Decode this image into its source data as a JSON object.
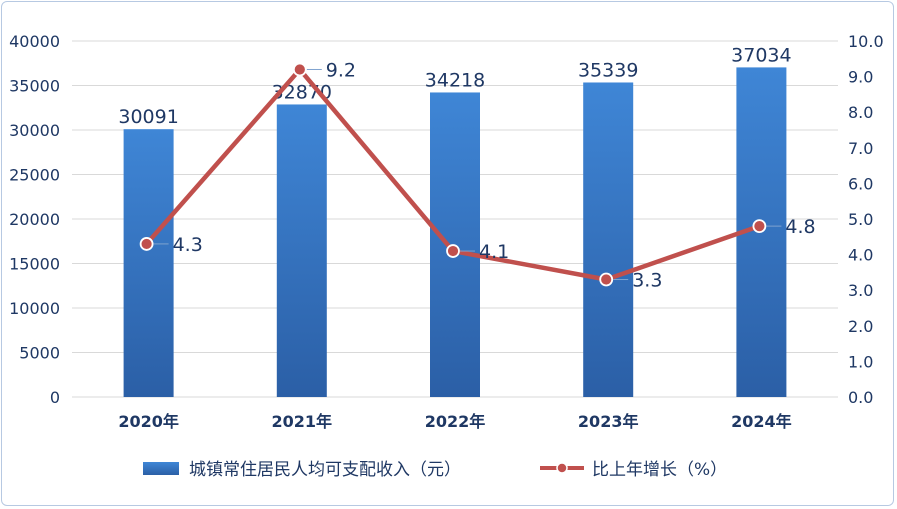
{
  "chart_data": {
    "type": "bar",
    "categories": [
      "2020年",
      "2021年",
      "2022年",
      "2023年",
      "2024年"
    ],
    "series": [
      {
        "name": "城镇常住居民人均可支配收入（元）",
        "type": "bar",
        "axis": "left",
        "values": [
          30091,
          32870,
          34218,
          35339,
          37034
        ],
        "color": "#3a78c3"
      },
      {
        "name": "比上年增长（%）",
        "type": "line",
        "axis": "right",
        "values": [
          4.3,
          9.2,
          4.1,
          3.3,
          4.8
        ],
        "color": "#c0504d"
      }
    ],
    "left_axis": {
      "min": 0,
      "max": 40000,
      "step": 5000,
      "ticks": [
        "0",
        "5000",
        "10000",
        "15000",
        "20000",
        "25000",
        "30000",
        "35000",
        "40000"
      ]
    },
    "right_axis": {
      "min": 0,
      "max": 10,
      "step": 1,
      "ticks": [
        "0.0",
        "1.0",
        "2.0",
        "3.0",
        "4.0",
        "5.0",
        "6.0",
        "7.0",
        "8.0",
        "9.0",
        "10.0"
      ]
    },
    "grid": true,
    "legend_position": "bottom"
  }
}
